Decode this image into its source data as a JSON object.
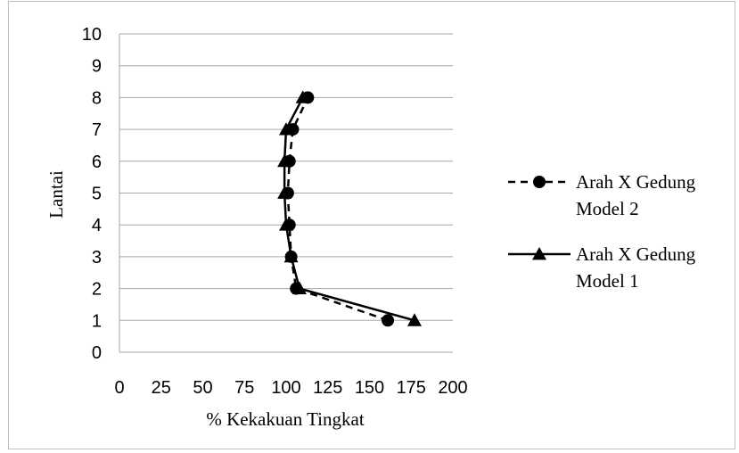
{
  "chart_data": {
    "type": "line",
    "title": "",
    "xlabel": "% Kekakuan Tingkat",
    "ylabel": "Lantai",
    "xlim": [
      0,
      200
    ],
    "ylim": [
      0,
      10
    ],
    "x_ticks": [
      "0",
      "25",
      "50",
      "75",
      "100",
      "125",
      "150",
      "175",
      "200"
    ],
    "y_ticks": [
      "0",
      "1",
      "2",
      "3",
      "4",
      "5",
      "6",
      "7",
      "8",
      "9",
      "10"
    ],
    "grid": "horizontal",
    "legend_position": "right",
    "series": [
      {
        "name_line1": "Arah X Gedung",
        "name_line2": "Model 2",
        "style": "dashed",
        "marker": "circle",
        "color": "#000000",
        "points": [
          {
            "x": 161,
            "y": 1
          },
          {
            "x": 106,
            "y": 2
          },
          {
            "x": 103,
            "y": 3
          },
          {
            "x": 102,
            "y": 4
          },
          {
            "x": 101,
            "y": 5
          },
          {
            "x": 102,
            "y": 6
          },
          {
            "x": 104,
            "y": 7
          },
          {
            "x": 113,
            "y": 8
          }
        ]
      },
      {
        "name_line1": "Arah X Gedung",
        "name_line2": "Model 1",
        "style": "solid",
        "marker": "triangle",
        "color": "#000000",
        "points": [
          {
            "x": 177,
            "y": 1
          },
          {
            "x": 108,
            "y": 2
          },
          {
            "x": 103,
            "y": 3
          },
          {
            "x": 100,
            "y": 4
          },
          {
            "x": 99,
            "y": 5
          },
          {
            "x": 99,
            "y": 6
          },
          {
            "x": 100,
            "y": 7
          },
          {
            "x": 110,
            "y": 8
          }
        ]
      }
    ]
  }
}
